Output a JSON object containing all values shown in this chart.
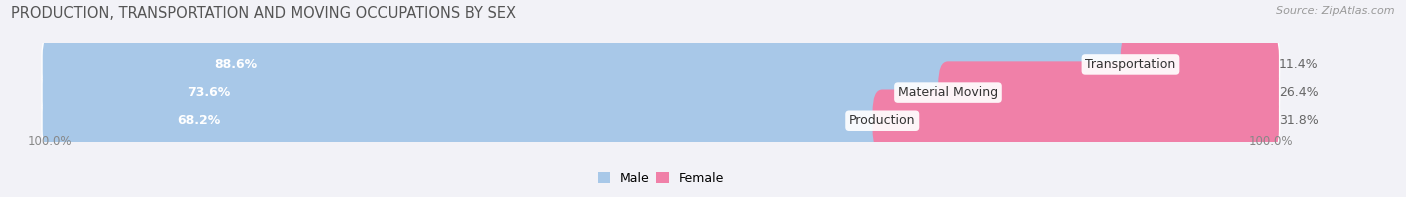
{
  "title": "PRODUCTION, TRANSPORTATION AND MOVING OCCUPATIONS BY SEX",
  "source": "Source: ZipAtlas.com",
  "categories": [
    "Transportation",
    "Material Moving",
    "Production"
  ],
  "male_pct": [
    88.6,
    73.6,
    68.2
  ],
  "female_pct": [
    11.4,
    26.4,
    31.8
  ],
  "male_color": "#a8c8e8",
  "female_color": "#f080a8",
  "male_label": "Male",
  "female_label": "Female",
  "bar_height": 0.62,
  "background_color": "#f2f2f7",
  "bar_bg_color": "#e2e2ec",
  "axis_left_label": "100.0%",
  "axis_right_label": "100.0%",
  "title_fontsize": 10.5,
  "source_fontsize": 8,
  "label_fontsize": 9,
  "pct_fontsize": 9,
  "tick_fontsize": 8.5,
  "total_width": 100
}
